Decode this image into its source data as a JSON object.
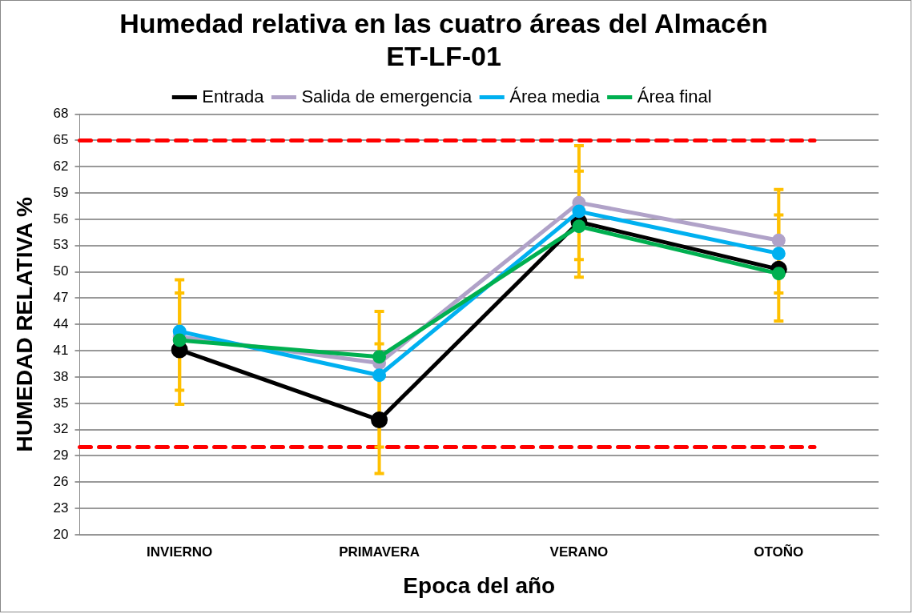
{
  "chart_data": {
    "type": "line",
    "title": "Humedad relativa en las cuatro áreas del Almacén\nET-LF-01",
    "xlabel": "Epoca del año",
    "ylabel": "HUMEDAD RELATIVA %",
    "categories": [
      "INVIERNO",
      "PRIMAVERA",
      "VERANO",
      "OTOÑO"
    ],
    "series": [
      {
        "name": "Entrada",
        "color": "#000000",
        "values": [
          41.1,
          33.1,
          55.7,
          50.3
        ]
      },
      {
        "name": "Salida de emergencia",
        "color": "#b0a2c8",
        "values": [
          42.6,
          39.6,
          57.9,
          53.6
        ],
        "errors": [
          [
            34.9,
            49.1
          ],
          [
            27.0,
            45.5
          ],
          [
            49.4,
            64.4
          ],
          [
            44.4,
            59.4
          ]
        ]
      },
      {
        "name": "Área media",
        "color": "#00b0f0",
        "values": [
          43.2,
          38.2,
          56.9,
          52.1
        ],
        "errors": [
          [
            36.5,
            47.6
          ],
          [
            30.0,
            41.8
          ],
          [
            51.4,
            61.5
          ],
          [
            47.6,
            56.5
          ]
        ]
      },
      {
        "name": "Área final",
        "color": "#00b050",
        "values": [
          42.2,
          40.3,
          55.2,
          49.8
        ]
      }
    ],
    "ylim": [
      20,
      68
    ],
    "yticks": [
      20,
      23,
      26,
      29,
      32,
      35,
      38,
      41,
      44,
      47,
      50,
      53,
      56,
      59,
      62,
      65,
      68
    ],
    "ref_lines": [
      {
        "axis": "y",
        "value": 65,
        "color": "#ff0000",
        "line_style": "dashed"
      },
      {
        "axis": "y",
        "value": 30,
        "color": "#ff0000",
        "line_style": "dashed"
      }
    ],
    "grid": "y",
    "legend": "top",
    "marker": "circle",
    "line_style": "solid"
  }
}
